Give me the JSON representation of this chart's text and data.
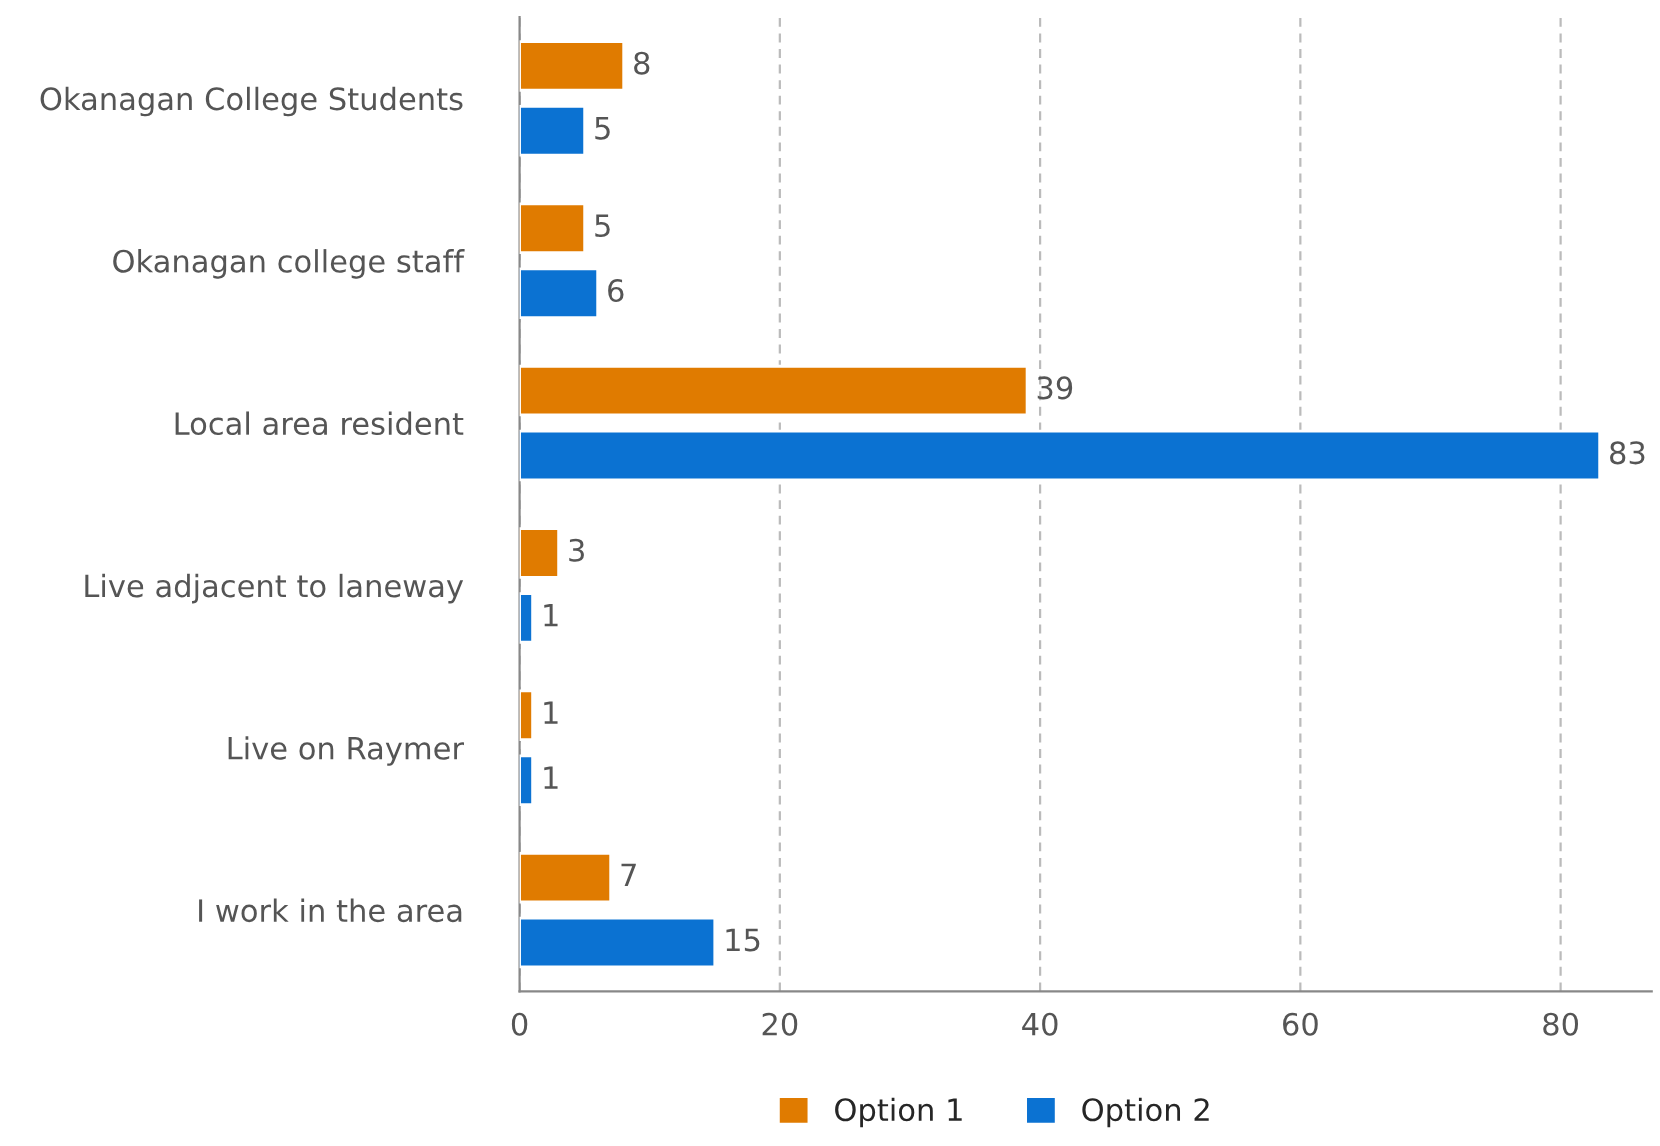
{
  "chart_data": {
    "type": "bar",
    "orientation": "horizontal",
    "categories": [
      "Okanagan College Students",
      "Okanagan college staff",
      "Local area resident",
      "Live adjacent to laneway",
      "Live on Raymer",
      "I work in the area"
    ],
    "series": [
      {
        "name": "Option 1",
        "color": "#e07b00",
        "values": [
          8,
          5,
          39,
          3,
          1,
          7
        ]
      },
      {
        "name": "Option 2",
        "color": "#0b72d2",
        "values": [
          5,
          6,
          83,
          1,
          1,
          15
        ]
      }
    ],
    "xlim": [
      0,
      87
    ],
    "xticks": [
      0,
      20,
      40,
      60,
      80
    ],
    "grid": "x",
    "legend": "bottom",
    "data_labels": true
  }
}
